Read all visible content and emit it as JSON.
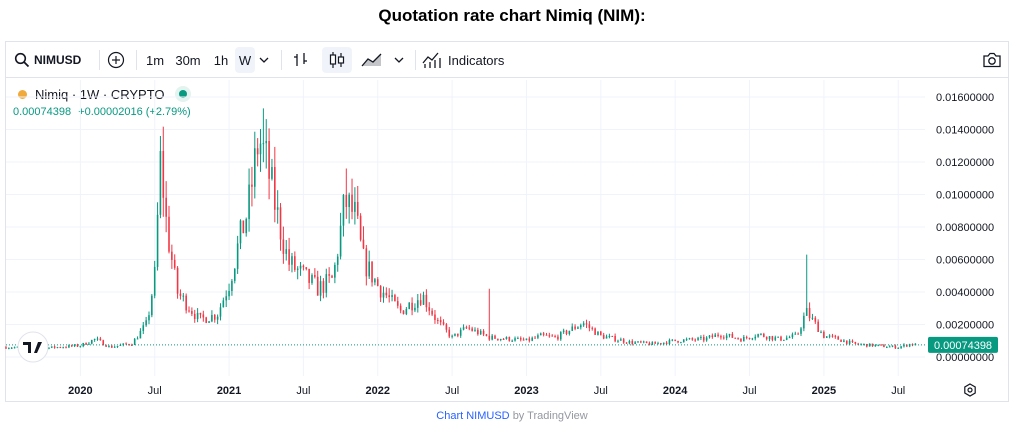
{
  "page_title": "Quotation rate chart Nimiq (NIM):",
  "toolbar": {
    "symbol": "NIMUSD",
    "intervals": [
      "1m",
      "30m",
      "1h",
      "W"
    ],
    "selected_interval": "W",
    "indicators_label": "Indicators"
  },
  "legend": {
    "name": "Nimiq · 1W · CRYPTO",
    "price": "0.00074398",
    "change": "+0.00002016 (+2.79%)"
  },
  "last_price_label": "0.00074398",
  "footer": {
    "link_text": "Chart NIMUSD",
    "by_text": "by TradingView"
  },
  "colors": {
    "up": "#089981",
    "down": "#f23645",
    "accent": "#2962ff"
  },
  "icons": [
    "search-icon",
    "compare-plus-icon",
    "chevron-down-icon",
    "bar-chart-icon",
    "candles-icon",
    "area-chart-icon",
    "indicators-icon",
    "camera-icon",
    "settings-icon",
    "tradingview-logo-icon"
  ],
  "chart_data": {
    "type": "candlestick",
    "title": "Quotation rate chart Nimiq (NIM):",
    "symbol": "NIMUSD",
    "interval": "1W",
    "y_ticks": [
      "0.01600000",
      "0.01400000",
      "0.01200000",
      "0.01000000",
      "0.00800000",
      "0.00600000",
      "0.00400000",
      "0.00200000",
      "0.00000000"
    ],
    "ylim": [
      0,
      0.0165
    ],
    "x_ticks": [
      "2020",
      "Jul",
      "2021",
      "Jul",
      "2022",
      "Jul",
      "2023",
      "Jul",
      "2024",
      "Jul",
      "2025",
      "Jul"
    ],
    "x_tick_dates": [
      2020.0,
      2020.5,
      2021.0,
      2021.5,
      2022.0,
      2022.5,
      2023.0,
      2023.5,
      2024.0,
      2024.5,
      2025.0,
      2025.5
    ],
    "xlim": [
      2019.5,
      2025.68
    ],
    "last_price": 0.00074398,
    "anchors": [
      [
        2019.5,
        0.0006
      ],
      [
        2019.75,
        0.00055
      ],
      [
        2020.0,
        0.0007
      ],
      [
        2020.1,
        0.0011
      ],
      [
        2020.2,
        0.0006
      ],
      [
        2020.35,
        0.00085
      ],
      [
        2020.45,
        0.0021
      ],
      [
        2020.5,
        0.005
      ],
      [
        2020.54,
        0.0122
      ],
      [
        2020.58,
        0.008
      ],
      [
        2020.65,
        0.004
      ],
      [
        2020.8,
        0.0023
      ],
      [
        2020.92,
        0.0026
      ],
      [
        2021.0,
        0.0045
      ],
      [
        2021.06,
        0.0068
      ],
      [
        2021.13,
        0.0092
      ],
      [
        2021.2,
        0.0135
      ],
      [
        2021.25,
        0.012
      ],
      [
        2021.33,
        0.0085
      ],
      [
        2021.4,
        0.0058
      ],
      [
        2021.5,
        0.005
      ],
      [
        2021.6,
        0.0042
      ],
      [
        2021.7,
        0.0048
      ],
      [
        2021.78,
        0.0096
      ],
      [
        2021.85,
        0.0086
      ],
      [
        2021.9,
        0.006
      ],
      [
        2022.0,
        0.0044
      ],
      [
        2022.15,
        0.0028
      ],
      [
        2022.3,
        0.0038
      ],
      [
        2022.4,
        0.0022
      ],
      [
        2022.5,
        0.0012
      ],
      [
        2022.6,
        0.0018
      ],
      [
        2022.75,
        0.0012
      ],
      [
        2022.9,
        0.0011
      ],
      [
        2023.0,
        0.001
      ],
      [
        2023.1,
        0.0013
      ],
      [
        2023.2,
        0.0012
      ],
      [
        2023.3,
        0.0017
      ],
      [
        2023.38,
        0.0021
      ],
      [
        2023.5,
        0.0013
      ],
      [
        2023.7,
        0.0009
      ],
      [
        2023.85,
        0.0008
      ],
      [
        2024.0,
        0.001
      ],
      [
        2024.2,
        0.0011
      ],
      [
        2024.3,
        0.0014
      ],
      [
        2024.45,
        0.0011
      ],
      [
        2024.55,
        0.0014
      ],
      [
        2024.7,
        0.0011
      ],
      [
        2024.82,
        0.0013
      ],
      [
        2024.88,
        0.0028
      ],
      [
        2024.92,
        0.0023
      ],
      [
        2025.0,
        0.0013
      ],
      [
        2025.1,
        0.0011
      ],
      [
        2025.2,
        0.0008
      ],
      [
        2025.35,
        0.0007
      ],
      [
        2025.5,
        0.0006
      ],
      [
        2025.58,
        0.0008
      ],
      [
        2025.62,
        0.00074
      ]
    ],
    "notable_wicks": [
      [
        2020.54,
        0.0136
      ],
      [
        2021.23,
        0.0153
      ],
      [
        2021.79,
        0.0116
      ],
      [
        2024.88,
        0.0063
      ],
      [
        2022.75,
        0.0042
      ]
    ]
  }
}
